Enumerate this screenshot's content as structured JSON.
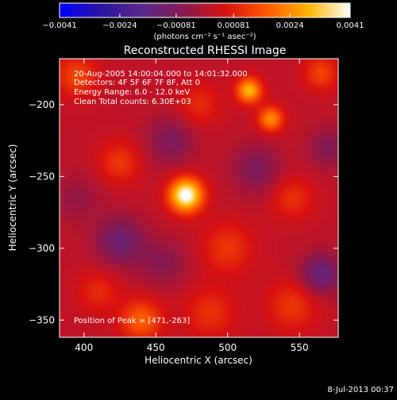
{
  "chart_data": {
    "type": "heatmap",
    "title": "Reconstructed RHESSI Image",
    "xlabel": "Heliocentric X (arcsec)",
    "ylabel": "Heliocentric Y (arcsec)",
    "xlim": [
      383,
      577
    ],
    "ylim": [
      -362,
      -168
    ],
    "x_ticks": [
      400,
      450,
      500,
      550
    ],
    "y_ticks": [
      -200,
      -250,
      -300,
      -350
    ],
    "colorbar": {
      "ticks": [
        -0.0041,
        -0.0024,
        -0.00081,
        0.00081,
        0.0024,
        0.0041
      ],
      "tick_labels": [
        "-0.0041",
        "-0.0024",
        "-0.00081",
        "0.00081",
        "0.0024",
        "0.0041"
      ],
      "unit_label": "(photons cm⁻² s⁻¹ asec⁻²)",
      "range": [
        -0.0041,
        0.0041
      ]
    },
    "colormap_stops": [
      "#0000ff",
      "#2a14a0",
      "#5a2a8c",
      "#8a1a50",
      "#d81010",
      "#ff5a00",
      "#ffb400",
      "#ffffff"
    ],
    "annotations": [
      "20-Aug-2005 14:00:04.000 to 14:01:32.000",
      "Detectors: 4F 5F 6F 7F 8F, Att 0",
      "Energy Range: 6.0 - 12.0 keV",
      "Clean    Total counts: 6.30E+03"
    ],
    "peak_label": "Position of Peak = [471,-263]",
    "peak_position": [
      471,
      -263
    ],
    "sources": [
      {
        "x": 471,
        "y": -263,
        "amp": 0.0041,
        "sigma": 8
      },
      {
        "x": 515,
        "y": -190,
        "amp": 0.0028,
        "sigma": 6
      },
      {
        "x": 530,
        "y": -210,
        "amp": 0.0022,
        "sigma": 6
      },
      {
        "x": 565,
        "y": -178,
        "amp": 0.0012,
        "sigma": 8
      },
      {
        "x": 440,
        "y": -350,
        "amp": 0.0016,
        "sigma": 10
      },
      {
        "x": 425,
        "y": -240,
        "amp": 0.001,
        "sigma": 10
      },
      {
        "x": 500,
        "y": -300,
        "amp": 0.001,
        "sigma": 12
      },
      {
        "x": 545,
        "y": -265,
        "amp": 0.0009,
        "sigma": 10
      },
      {
        "x": 545,
        "y": -340,
        "amp": 0.001,
        "sigma": 12
      },
      {
        "x": 395,
        "y": -180,
        "amp": 0.0012,
        "sigma": 10
      },
      {
        "x": 410,
        "y": -330,
        "amp": 0.0008,
        "sigma": 10
      },
      {
        "x": 480,
        "y": -200,
        "amp": 0.0008,
        "sigma": 10
      },
      {
        "x": 488,
        "y": -345,
        "amp": 0.0009,
        "sigma": 12
      },
      {
        "x": 425,
        "y": -295,
        "amp": -0.0014,
        "sigma": 12
      },
      {
        "x": 565,
        "y": -318,
        "amp": -0.0016,
        "sigma": 10
      },
      {
        "x": 520,
        "y": -245,
        "amp": -0.001,
        "sigma": 12
      },
      {
        "x": 460,
        "y": -225,
        "amp": -0.001,
        "sigma": 12
      },
      {
        "x": 570,
        "y": -230,
        "amp": -0.0009,
        "sigma": 10
      },
      {
        "x": 455,
        "y": -310,
        "amp": -0.0008,
        "sigma": 12
      },
      {
        "x": 395,
        "y": -265,
        "amp": -0.0006,
        "sigma": 12
      }
    ],
    "background": 0.0002
  },
  "footer": {
    "date": "8-Jul-2013 00:37"
  }
}
